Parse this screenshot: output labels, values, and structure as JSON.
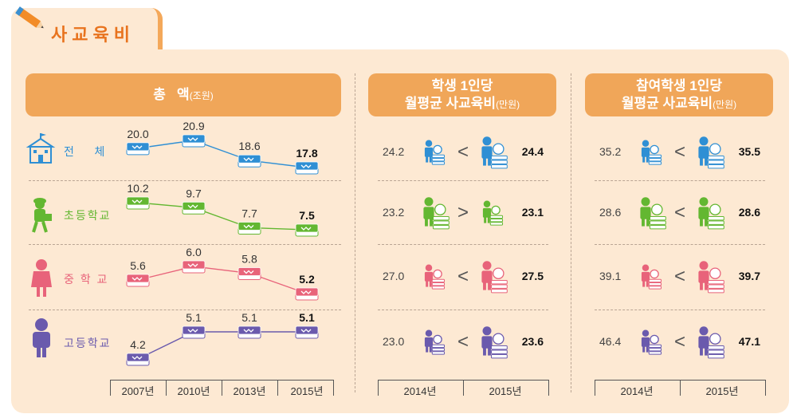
{
  "title": "사교육비",
  "headers": {
    "total_main": "총   액",
    "total_unit": "(조원)",
    "student_line1": "학생 1인당",
    "student_line2": "월평균 사교육비",
    "student_unit": "(만원)",
    "participant_line1": "참여학생 1인당",
    "participant_line2": "월평균 사교육비",
    "participant_unit": "(만원)"
  },
  "row_labels": [
    "전    체",
    "초등학교",
    "중 학 교",
    "고등학교"
  ],
  "colors": {
    "전체": "#2f8fd4",
    "초등학교": "#63b731",
    "중학교": "#e8637a",
    "고등학교": "#6a5aad",
    "header": "#f0a659",
    "title": "#e8731e"
  },
  "chart_data": [
    {
      "type": "line",
      "title": "총 액(조원)",
      "x": [
        "2007년",
        "2010년",
        "2013년",
        "2015년"
      ],
      "series": [
        {
          "name": "전체",
          "values": [
            20.0,
            20.9,
            18.6,
            17.8
          ]
        },
        {
          "name": "초등학교",
          "values": [
            10.2,
            9.7,
            7.7,
            7.5
          ]
        },
        {
          "name": "중학교",
          "values": [
            5.6,
            6.0,
            5.8,
            5.2
          ]
        },
        {
          "name": "고등학교",
          "values": [
            4.2,
            5.1,
            5.1,
            5.1
          ]
        }
      ]
    },
    {
      "type": "table",
      "title": "학생 1인당 월평균 사교육비(만원)",
      "x": [
        "2014년",
        "2015년"
      ],
      "series": [
        {
          "name": "전체",
          "values": [
            24.2,
            24.4
          ],
          "symbol": "<"
        },
        {
          "name": "초등학교",
          "values": [
            23.2,
            23.1
          ],
          "symbol": ">"
        },
        {
          "name": "중학교",
          "values": [
            27.0,
            27.5
          ],
          "symbol": "<"
        },
        {
          "name": "고등학교",
          "values": [
            23.0,
            23.6
          ],
          "symbol": "<"
        }
      ]
    },
    {
      "type": "table",
      "title": "참여학생 1인당 월평균 사교육비(만원)",
      "x": [
        "2014년",
        "2015년"
      ],
      "series": [
        {
          "name": "전체",
          "values": [
            35.2,
            35.5
          ],
          "symbol": "<"
        },
        {
          "name": "초등학교",
          "values": [
            28.6,
            28.6
          ],
          "symbol": "<"
        },
        {
          "name": "중학교",
          "values": [
            39.1,
            39.7
          ],
          "symbol": "<"
        },
        {
          "name": "고등학교",
          "values": [
            46.4,
            47.1
          ],
          "symbol": "<"
        }
      ]
    }
  ],
  "labels_text": {
    "total": [
      [
        "20.0",
        "20.9",
        "18.6",
        "17.8"
      ],
      [
        "10.2",
        "9.7",
        "7.7",
        "7.5"
      ],
      [
        "5.6",
        "6.0",
        "5.8",
        "5.2"
      ],
      [
        "4.2",
        "5.1",
        "5.1",
        "5.1"
      ]
    ],
    "student": [
      [
        "24.2",
        "24.4"
      ],
      [
        "23.2",
        "23.1"
      ],
      [
        "27.0",
        "27.5"
      ],
      [
        "23.0",
        "23.6"
      ]
    ],
    "participant": [
      [
        "35.2",
        "35.5"
      ],
      [
        "28.6",
        "28.6"
      ],
      [
        "39.1",
        "39.7"
      ],
      [
        "46.4",
        "47.1"
      ]
    ],
    "symbols_student": [
      "<",
      ">",
      "<",
      "<"
    ],
    "symbols_participant": [
      "<",
      "<",
      "<",
      "<"
    ]
  }
}
